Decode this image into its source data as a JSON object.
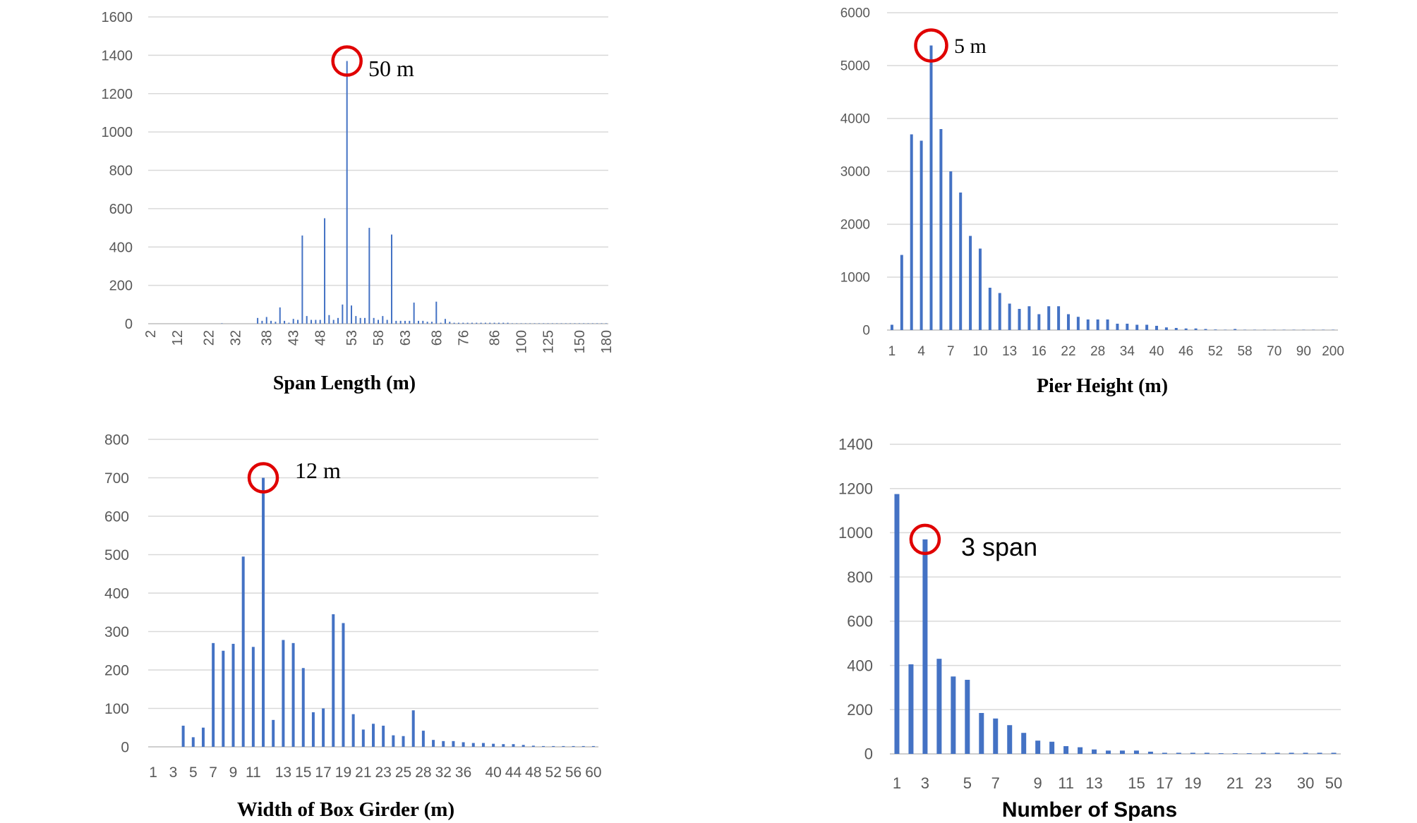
{
  "colors": {
    "bar": "#4472C4",
    "grid": "#D9D9D9",
    "axis": "#BFBFBF",
    "marker": "#E00000"
  },
  "chart_data": [
    {
      "id": "span",
      "type": "bar",
      "title": "Span Length (m)",
      "ylim": [
        0,
        1600
      ],
      "yticks": [
        "0",
        "200",
        "400",
        "600",
        "800",
        "1000",
        "1200",
        "1400",
        "1600"
      ],
      "xtick_labels": [
        "2",
        "12",
        "22",
        "32",
        "38",
        "43",
        "48",
        "53",
        "58",
        "63",
        "68",
        "76",
        "86",
        "100",
        "125",
        "150",
        "180"
      ],
      "values": [
        0,
        0,
        0,
        0,
        0,
        0,
        0,
        0,
        0,
        0,
        0,
        0,
        0,
        0,
        0,
        0,
        2,
        0,
        0,
        0,
        0,
        0,
        0,
        0,
        30,
        15,
        35,
        15,
        10,
        85,
        15,
        5,
        25,
        20,
        460,
        40,
        20,
        20,
        20,
        550,
        45,
        20,
        30,
        100,
        1370,
        95,
        40,
        30,
        30,
        500,
        30,
        20,
        40,
        20,
        465,
        15,
        15,
        15,
        15,
        110,
        15,
        15,
        10,
        10,
        115,
        5,
        25,
        10,
        5,
        5,
        5,
        5,
        5,
        5,
        5,
        5,
        5,
        5,
        5,
        5,
        5,
        2,
        2,
        2,
        2,
        2,
        2,
        2,
        2,
        2,
        2,
        2,
        2,
        2,
        2,
        2,
        2,
        2,
        2,
        2,
        2,
        2,
        2
      ],
      "grid": true,
      "annotation": {
        "index": 44,
        "text": "50 m"
      }
    },
    {
      "id": "pier",
      "type": "bar",
      "title": "Pier Height (m)",
      "ylim": [
        0,
        6000
      ],
      "yticks": [
        "0",
        "1000",
        "2000",
        "3000",
        "4000",
        "5000",
        "6000"
      ],
      "xtick_labels": [
        "1",
        "4",
        "7",
        "10",
        "13",
        "16",
        "22",
        "28",
        "34",
        "40",
        "46",
        "52",
        "58",
        "70",
        "90",
        "200"
      ],
      "values": [
        100,
        1420,
        3700,
        3580,
        5380,
        3800,
        3000,
        2600,
        1780,
        1540,
        800,
        700,
        500,
        400,
        450,
        300,
        450,
        450,
        300,
        250,
        200,
        200,
        200,
        120,
        120,
        100,
        100,
        80,
        50,
        40,
        30,
        30,
        20,
        10,
        5,
        20,
        5,
        5,
        5,
        5,
        5,
        5,
        5,
        5,
        5,
        5
      ],
      "grid": true,
      "annotation": {
        "index": 4,
        "text": "5 m"
      }
    },
    {
      "id": "width",
      "type": "bar",
      "title": "Width of Box Girder (m)",
      "ylim": [
        0,
        800
      ],
      "yticks": [
        "0",
        "100",
        "200",
        "300",
        "400",
        "500",
        "600",
        "700",
        "800"
      ],
      "xtick_labels": [
        "1",
        "3",
        "5",
        "7",
        "9",
        "11",
        "13",
        "15",
        "17",
        "19",
        "21",
        "23",
        "25",
        "28",
        "32",
        "36",
        "40",
        "44",
        "48",
        "52",
        "56",
        "60"
      ],
      "values": [
        0,
        0,
        0,
        55,
        25,
        50,
        270,
        250,
        268,
        495,
        260,
        700,
        70,
        278,
        270,
        205,
        90,
        100,
        345,
        322,
        85,
        45,
        60,
        55,
        30,
        28,
        95,
        42,
        18,
        15,
        15,
        12,
        10,
        10,
        8,
        7,
        7,
        5,
        3,
        2,
        2,
        2,
        2,
        2,
        2
      ],
      "grid": true,
      "annotation": {
        "index": 11,
        "text": "12 m"
      }
    },
    {
      "id": "spans",
      "type": "bar",
      "title": "Number of Spans",
      "ylim": [
        0,
        1400
      ],
      "yticks": [
        "0",
        "200",
        "400",
        "600",
        "800",
        "1000",
        "1200",
        "1400"
      ],
      "xtick_labels": [
        "1",
        "3",
        "5",
        "7",
        "9",
        "11",
        "13",
        "15",
        "17",
        "19",
        "21",
        "23",
        "30",
        "50"
      ],
      "values": [
        1175,
        405,
        970,
        430,
        350,
        335,
        185,
        160,
        130,
        95,
        60,
        55,
        35,
        30,
        20,
        15,
        15,
        15,
        10,
        5,
        5,
        5,
        5,
        3,
        3,
        3,
        5,
        5,
        5,
        5,
        5,
        5
      ],
      "grid": true,
      "annotation": {
        "index": 2,
        "text": "3 span"
      }
    }
  ]
}
